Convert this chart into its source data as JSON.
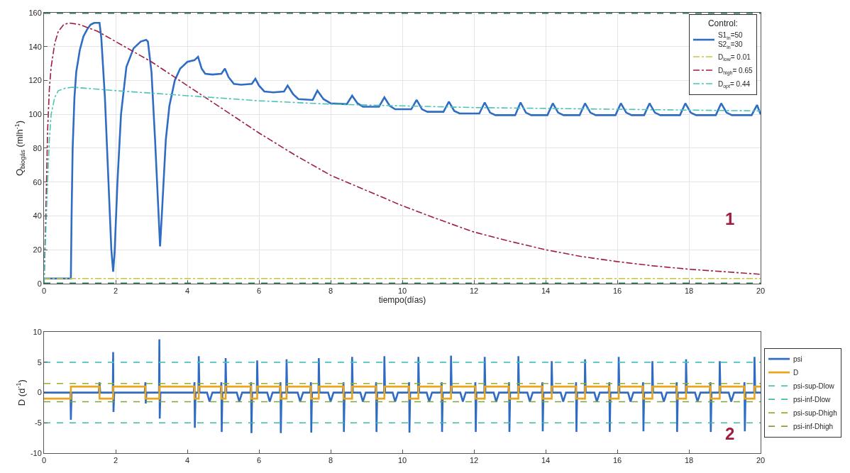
{
  "chart_data": [
    {
      "type": "line",
      "xlabel": "tiempo(días)",
      "ylabel": "Q$_{biogás}$ (mlh$^{-1}$)",
      "xlim": [
        0,
        20
      ],
      "ylim": [
        0,
        160
      ],
      "xticks": [
        0,
        2,
        4,
        6,
        8,
        10,
        12,
        14,
        16,
        18,
        20
      ],
      "yticks": [
        0,
        20,
        40,
        60,
        80,
        100,
        120,
        140,
        160
      ],
      "grid": true,
      "legend": "top right",
      "legend_title": "Control:",
      "annotations": [
        "1"
      ],
      "ref_lines": [
        {
          "axis": "y",
          "value": 160,
          "color": "#2a7a5e",
          "line_style": "dashed"
        },
        {
          "axis": "y",
          "value": 0,
          "color": "#2a7a5e",
          "line_style": "dashed"
        }
      ],
      "series": [
        {
          "name": "S1$_{in}$=50\nS2$_{in}$=30",
          "color": "#2f6cc4",
          "line_style": "solid",
          "x": [
            0,
            0.75,
            0.77,
            0.8,
            0.85,
            0.9,
            1.0,
            1.1,
            1.2,
            1.3,
            1.4,
            1.55,
            1.6,
            1.7,
            1.8,
            1.88,
            1.93,
            1.97,
            2.05,
            2.15,
            2.3,
            2.5,
            2.7,
            2.85,
            2.9,
            3.0,
            3.1,
            3.2,
            3.24,
            3.3,
            3.4,
            3.5,
            3.65,
            3.8,
            4.0,
            4.2,
            4.3,
            4.4,
            4.5,
            4.7,
            4.95,
            5.05,
            5.15,
            5.3,
            5.5,
            5.8,
            5.9,
            6.0,
            6.15,
            6.4,
            6.7,
            6.8,
            6.95,
            7.1,
            7.5,
            7.63,
            7.8,
            8.0,
            8.45,
            8.6,
            8.75,
            8.9,
            9.35,
            9.5,
            9.65,
            9.8,
            10.25,
            10.4,
            10.55,
            10.7,
            11.15,
            11.3,
            11.45,
            11.6,
            12.15,
            12.3,
            12.45,
            12.6,
            13.15,
            13.3,
            13.45,
            13.6,
            14.05,
            14.2,
            14.35,
            14.5,
            14.95,
            15.1,
            15.25,
            15.4,
            15.95,
            16.1,
            16.25,
            16.4,
            16.75,
            16.9,
            17.05,
            17.2,
            17.75,
            17.9,
            18.05,
            18.2,
            18.75,
            18.9,
            19.05,
            19.2,
            19.75,
            19.9,
            20
          ],
          "values": [
            3,
            3,
            40,
            80,
            110,
            125,
            138,
            146,
            150,
            153,
            154,
            154,
            145,
            110,
            60,
            20,
            7,
            18,
            60,
            100,
            128,
            139,
            143,
            144,
            143,
            125,
            85,
            40,
            22,
            45,
            85,
            105,
            120,
            127,
            131,
            132,
            134,
            127,
            124,
            123.5,
            124,
            127,
            122,
            118,
            117.5,
            118,
            121,
            117,
            113.5,
            113,
            113.5,
            117,
            112,
            109,
            108.5,
            114,
            109,
            106.5,
            106,
            111,
            106.5,
            104.5,
            104.5,
            110,
            105,
            103,
            103,
            108.5,
            103,
            101.5,
            101.5,
            107.5,
            102,
            100.5,
            100.5,
            107,
            101,
            99.5,
            99.5,
            107,
            101,
            99.5,
            99.5,
            106.5,
            101,
            99.5,
            99.5,
            106.5,
            101,
            99.5,
            99.5,
            106.5,
            101,
            99.5,
            99.5,
            106.5,
            101,
            99.5,
            99.5,
            106.5,
            101,
            99.5,
            99.5,
            106.5,
            101,
            99.5,
            99.5,
            105.5,
            100
          ]
        },
        {
          "name": "D$_{low}$= 0.01",
          "color": "#c8c43c",
          "line_style": "dashdot",
          "x": [
            0,
            20
          ],
          "values": [
            3,
            3
          ]
        },
        {
          "name": "D$_{high}$= 0.65",
          "color": "#9e1e3e",
          "line_style": "dashdot",
          "x": [
            0,
            0.05,
            0.1,
            0.15,
            0.2,
            0.3,
            0.4,
            0.55,
            0.7,
            1,
            1.5,
            2,
            3,
            4,
            5,
            6,
            7,
            8,
            9,
            10,
            11,
            12,
            13,
            14,
            15,
            16,
            17,
            18,
            19,
            20
          ],
          "values": [
            0,
            40,
            90,
            115,
            128,
            142,
            149,
            153,
            154,
            153,
            149,
            143,
            131,
            117,
            103,
            89,
            76,
            64,
            55,
            46,
            38,
            30.5,
            25,
            20,
            16,
            13,
            10.5,
            8.5,
            7,
            5.5
          ]
        },
        {
          "name": "D$_{opt}$= 0.44",
          "color": "#4cc4b4",
          "line_style": "dashdot",
          "x": [
            0,
            0.05,
            0.1,
            0.15,
            0.2,
            0.3,
            0.4,
            0.6,
            0.8,
            2,
            4,
            6,
            8,
            10,
            12,
            14,
            16,
            18,
            20
          ],
          "values": [
            0,
            30,
            60,
            85,
            100,
            110,
            114,
            115.5,
            116,
            114,
            111,
            108,
            106,
            105,
            104,
            103.5,
            103,
            102.5,
            102
          ]
        }
      ]
    },
    {
      "type": "line",
      "ylabel": "D (d$^{-1}$)",
      "xlim": [
        0,
        20
      ],
      "ylim": [
        -10,
        10
      ],
      "xticks": [
        0,
        2,
        4,
        6,
        8,
        10,
        12,
        14,
        16,
        18,
        20
      ],
      "yticks": [
        -10,
        -5,
        0,
        5,
        10
      ],
      "legend": "right",
      "annotations": [
        "2"
      ],
      "series": [
        {
          "name": "psi",
          "color": "#2f6cc4",
          "line_style": "solid",
          "x": [
            0,
            0.74,
            0.75,
            0.77,
            1.53,
            1.55,
            1.57,
            1.92,
            1.93,
            1.94,
            1.96,
            2.81,
            2.83,
            2.84,
            2.86,
            3.21,
            3.22,
            3.23,
            3.25,
            4.18,
            4.2,
            4.21,
            4.23,
            4.31,
            4.32,
            4.34,
            4.55,
            4.62,
            4.7,
            4.93,
            4.95,
            4.96,
            4.98,
            5.06,
            5.07,
            5.09,
            5.38,
            5.45,
            5.53,
            5.76,
            5.78,
            5.79,
            5.81,
            5.94,
            5.95,
            5.97,
            6.23,
            6.3,
            6.38,
            6.58,
            6.6,
            6.61,
            6.63,
            6.76,
            6.77,
            6.79,
            7.08,
            7.15,
            7.23,
            7.43,
            7.45,
            7.46,
            7.48,
            7.66,
            7.67,
            7.69,
            7.93,
            8.0,
            8.08,
            8.34,
            8.36,
            8.37,
            8.39,
            8.59,
            8.6,
            8.62,
            8.83,
            8.9,
            8.98,
            9.25,
            9.27,
            9.28,
            9.3,
            9.49,
            9.5,
            9.52,
            9.73,
            9.8,
            9.88,
            10.17,
            10.19,
            10.2,
            10.22,
            10.44,
            10.45,
            10.47,
            10.68,
            10.75,
            10.83,
            11.08,
            11.1,
            11.11,
            11.13,
            11.35,
            11.36,
            11.38,
            11.62,
            11.69,
            11.77,
            12.02,
            12.04,
            12.05,
            12.07,
            12.29,
            12.3,
            12.32,
            12.55,
            12.62,
            12.7,
            12.96,
            12.98,
            12.99,
            13.01,
            13.23,
            13.24,
            13.26,
            13.49,
            13.56,
            13.64,
            13.89,
            13.91,
            13.92,
            13.94,
            14.16,
            14.17,
            14.19,
            14.42,
            14.49,
            14.57,
            14.83,
            14.85,
            14.86,
            14.88,
            15.09,
            15.1,
            15.12,
            15.36,
            15.43,
            15.51,
            15.76,
            15.78,
            15.79,
            15.81,
            16.03,
            16.04,
            16.06,
            16.3,
            16.37,
            16.45,
            16.7,
            16.72,
            16.73,
            16.75,
            16.97,
            16.98,
            17,
            17.23,
            17.3,
            17.38,
            17.64,
            17.66,
            17.67,
            17.69,
            17.91,
            17.92,
            17.94,
            18.17,
            18.24,
            18.32,
            18.58,
            18.6,
            18.61,
            18.63,
            18.85,
            18.86,
            18.88,
            19.11,
            19.18,
            19.26,
            19.53,
            19.55,
            19.56,
            19.58,
            19.82,
            19.83,
            19.85,
            20
          ],
          "values": [
            0,
            0,
            -4.5,
            0,
            0,
            1.7,
            0,
            0,
            6.7,
            -3.2,
            0,
            0,
            1.7,
            -1.8,
            0,
            0,
            8.8,
            -4.3,
            0,
            0,
            1.7,
            -5.8,
            0,
            0,
            6,
            0,
            0,
            -1.5,
            0,
            0,
            1.7,
            -6.5,
            0,
            0,
            5.7,
            0,
            0,
            -1.5,
            0,
            0,
            1.7,
            -6.7,
            0,
            0,
            5.3,
            0,
            0,
            -1.5,
            0,
            0,
            1.7,
            -6.7,
            0,
            0,
            5.5,
            0,
            0,
            -1.5,
            0,
            0,
            1.7,
            -6.6,
            0,
            0,
            5.7,
            0,
            0,
            -1.5,
            0,
            0,
            1.7,
            -6.5,
            0,
            0,
            5.9,
            0,
            0,
            -1.5,
            0,
            0,
            1.7,
            -6.5,
            0,
            0,
            6.0,
            0,
            0,
            -1.5,
            0,
            0,
            1.7,
            -6.6,
            0,
            0,
            5.9,
            0,
            0,
            -1.5,
            0,
            0,
            1.7,
            -6.5,
            0,
            0,
            6.1,
            0,
            0,
            -1.5,
            0,
            0,
            1.7,
            -6.5,
            0,
            0,
            5.9,
            0,
            0,
            -1.5,
            0,
            0,
            1.7,
            -6.5,
            0,
            0,
            6.0,
            0,
            0,
            -1.5,
            0,
            0,
            1.7,
            -6.4,
            0,
            0,
            5.2,
            0,
            0,
            -1.5,
            0,
            0,
            1.7,
            -6.5,
            0,
            0,
            5.5,
            0,
            0,
            -1.5,
            0,
            0,
            1.7,
            -6.5,
            0,
            0,
            5.9,
            0,
            0,
            -1.5,
            0,
            0,
            1.7,
            -6.4,
            0,
            0,
            5.2,
            0,
            0,
            -1.5,
            0,
            0,
            1.7,
            -6.5,
            0,
            0,
            5.5,
            0,
            0,
            -1.5,
            0,
            0,
            1.7,
            -6.5,
            0,
            0,
            5.2,
            0,
            0,
            -1.5,
            0,
            0,
            1.7,
            -6.4,
            0,
            0,
            5.9,
            0,
            0
          ]
        },
        {
          "name": "D",
          "type": "step",
          "color": "#eaa51c",
          "line_style": "solid",
          "x": [
            0,
            0.75,
            1.55,
            1.93,
            2.83,
            3.22,
            4.2,
            4.32,
            4.95,
            5.07,
            5.78,
            5.95,
            6.6,
            6.77,
            7.45,
            7.67,
            8.36,
            8.6,
            9.27,
            9.5,
            10.19,
            10.45,
            11.1,
            11.36,
            12.04,
            12.3,
            12.98,
            13.24,
            13.91,
            14.17,
            14.85,
            15.1,
            15.78,
            16.04,
            16.72,
            16.98,
            17.66,
            17.92,
            18.6,
            18.86,
            19.55,
            19.83,
            20
          ],
          "values": [
            -1,
            1,
            -1,
            1,
            -1,
            1,
            -1,
            1,
            -1,
            1,
            -1,
            1,
            -1,
            1,
            -1,
            1,
            -1,
            1,
            -1,
            1,
            -1,
            1,
            -1,
            1,
            -1,
            1,
            -1,
            1,
            -1,
            1,
            -1,
            1,
            -1,
            1,
            -1,
            1,
            -1,
            1,
            -1,
            1,
            -1,
            1,
            1
          ]
        },
        {
          "name": "psi-sup-Dlow",
          "color": "#4cc4c0",
          "line_style": "dashed",
          "x": [
            0,
            20
          ],
          "values": [
            5,
            5
          ]
        },
        {
          "name": "psi-inf-Dlow",
          "color": "#3cbca8",
          "line_style": "dashed",
          "x": [
            0,
            20
          ],
          "values": [
            -5,
            -5
          ]
        },
        {
          "name": "psi-sup-Dhigh",
          "color": "#8cb42c",
          "line_style": "dashed",
          "x": [
            0,
            20
          ],
          "values": [
            1.5,
            1.5
          ]
        },
        {
          "name": "psi-inf-Dhigh",
          "color": "#7ea43c",
          "line_style": "dashed",
          "x": [
            0,
            20
          ],
          "values": [
            -1.5,
            -1.5
          ]
        }
      ]
    }
  ]
}
